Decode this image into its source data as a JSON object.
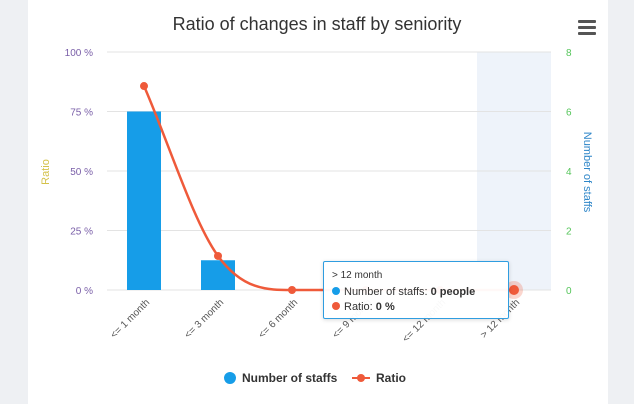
{
  "chart_data": {
    "type": "bar+line",
    "title": "Ratio of changes in staff by seniority",
    "categories": [
      "<= 1 month",
      "<= 3 month",
      "<= 6 month",
      "<= 9 month",
      "<= 12 month",
      "> 12 month"
    ],
    "series": [
      {
        "name": "Number of staffs",
        "type": "bar",
        "axis": "right",
        "values": [
          6,
          1,
          0,
          0,
          0,
          0
        ],
        "color": "#169de8"
      },
      {
        "name": "Ratio",
        "type": "line",
        "axis": "left",
        "values": [
          85.7,
          14.3,
          0,
          0,
          0,
          0
        ],
        "color": "#ef5a3a"
      }
    ],
    "yleft": {
      "label": "Ratio",
      "ticks": [
        "0 %",
        "25 %",
        "50 %",
        "75 %",
        "100 %"
      ],
      "range": [
        0,
        100
      ],
      "label_color": "#d4c24a",
      "tick_color": "#7a5fa8"
    },
    "yright": {
      "label": "Number of staffs",
      "ticks": [
        "0",
        "2",
        "4",
        "6",
        "8"
      ],
      "range": [
        0,
        8
      ],
      "label_color": "#2e86c8",
      "tick_color": "#55c55a"
    },
    "highlight_category": 5,
    "grid": true,
    "legend_position": "bottom"
  },
  "tooltip": {
    "header": "> 12 month",
    "rows": [
      {
        "label": "Number of staffs: ",
        "value": "0 people",
        "color": "#169de8"
      },
      {
        "label": "Ratio: ",
        "value": "0 %",
        "color": "#ef5a3a"
      }
    ]
  },
  "legend": [
    {
      "name": "Number of staffs",
      "color": "#169de8"
    },
    {
      "name": "Ratio",
      "color": "#ef5a3a"
    }
  ]
}
